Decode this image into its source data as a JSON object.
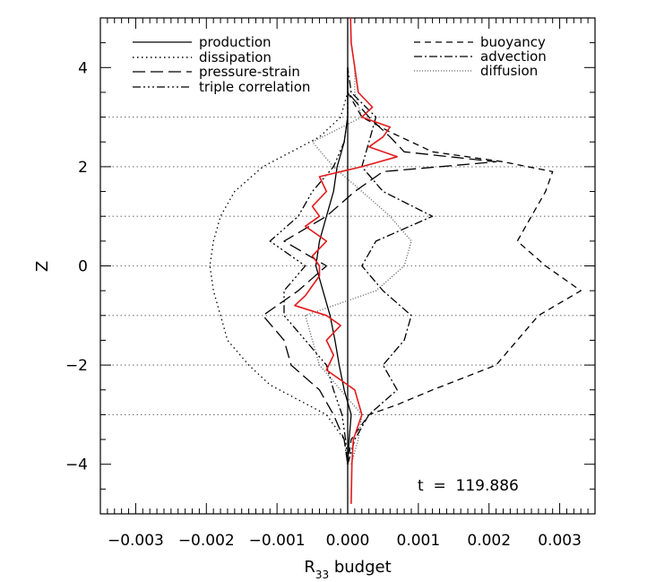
{
  "chart_data": {
    "type": "line",
    "xlabel_main": "R",
    "xlabel_sub": "33",
    "xlabel_rest": " budget",
    "ylabel": "Z",
    "xlim": [
      -0.0035,
      0.0035
    ],
    "ylim": [
      -5,
      5
    ],
    "x_ticks": [
      -0.003,
      -0.002,
      -0.001,
      0.0,
      0.001,
      0.002,
      0.003
    ],
    "x_tick_labels": [
      "−0.003",
      "−0.002",
      "−0.001",
      "0.000",
      "0.001",
      "0.002",
      "0.003"
    ],
    "y_ticks": [
      -4,
      -2,
      0,
      2,
      4
    ],
    "y_tick_labels": [
      "−4",
      "−2",
      "0",
      "2",
      "4"
    ],
    "reference_lines_z": [
      -3,
      -2,
      -1,
      0,
      1,
      2,
      3
    ],
    "annotation": "t  =  119.886",
    "series": [
      {
        "name": "production",
        "style": "solid",
        "color": "#000000",
        "z": [
          -4,
          -3.5,
          -3,
          -2.5,
          -2,
          -1.5,
          -1,
          -0.5,
          0,
          0.5,
          1,
          1.5,
          2,
          2.5,
          3,
          3.5,
          4
        ],
        "x": [
          0,
          2e-05,
          5e-05,
          -5e-05,
          -0.00012,
          -0.00018,
          -0.00025,
          -0.00035,
          -0.00045,
          -0.0004,
          -0.0003,
          -0.0002,
          -0.00015,
          -5e-05,
          0,
          0,
          0
        ]
      },
      {
        "name": "dissipation",
        "style": "dotted",
        "color": "#000000",
        "z": [
          -4,
          -3.5,
          -3,
          -2.7,
          -2.4,
          -2,
          -1.5,
          -1,
          -0.5,
          0,
          0.5,
          1,
          1.5,
          2,
          2.3,
          2.6,
          3,
          3.5,
          4
        ],
        "x": [
          0,
          -5e-05,
          -0.0003,
          -0.0007,
          -0.0011,
          -0.0014,
          -0.0017,
          -0.0018,
          -0.0019,
          -0.00195,
          -0.0019,
          -0.0018,
          -0.0016,
          -0.0012,
          -0.0008,
          -0.0004,
          -0.0001,
          0,
          0
        ]
      },
      {
        "name": "pressure-strain",
        "style": "longdash",
        "color": "#000000",
        "z": [
          -4,
          -3.5,
          -3,
          -2.5,
          -2,
          -1.5,
          -1,
          -0.5,
          0,
          0.5,
          1,
          1.5,
          1.9,
          2.1,
          2.3,
          2.6,
          3,
          3.5,
          4
        ],
        "x": [
          0,
          -5e-05,
          -0.0002,
          -0.0004,
          -0.0008,
          -0.0009,
          -0.0012,
          -0.0007,
          -0.0003,
          -0.0009,
          -0.0003,
          0.0001,
          0.0005,
          0.0021,
          0.0008,
          0.0006,
          0.0003,
          0,
          0
        ]
      },
      {
        "name": "triple correlation",
        "style": "dashdotdot",
        "color": "#000000",
        "z": [
          -4,
          -3.5,
          -3,
          -2.5,
          -2,
          -1.5,
          -1,
          -0.5,
          0,
          0.5,
          1,
          1.5,
          2,
          2.5,
          3,
          3.5,
          4
        ],
        "x": [
          0,
          -3e-05,
          -8e-05,
          -0.0002,
          -0.0003,
          -0.0006,
          -0.0009,
          -0.0009,
          -0.0006,
          -0.0011,
          -0.0007,
          -0.0005,
          -0.0002,
          -5e-05,
          0,
          0,
          0
        ]
      },
      {
        "name": "buoyancy",
        "style": "dashed",
        "color": "#000000",
        "z": [
          -4,
          -3.5,
          -3,
          -2.8,
          -2.5,
          -2,
          -1.5,
          -1,
          -0.5,
          0,
          0.5,
          1,
          1.5,
          1.9,
          2.1,
          2.3,
          2.7,
          3,
          3.5,
          4
        ],
        "x": [
          0,
          5e-05,
          0.0003,
          0.0007,
          0.0012,
          0.0021,
          0.0024,
          0.0027,
          0.0033,
          0.0028,
          0.0024,
          0.0026,
          0.0028,
          0.0029,
          0.0022,
          0.0012,
          0.0006,
          0.0002,
          0,
          0
        ]
      },
      {
        "name": "advection",
        "style": "dashdot",
        "color": "#000000",
        "z": [
          -4,
          -3.5,
          -3,
          -2.5,
          -2,
          -1.5,
          -1,
          -0.5,
          0,
          0.5,
          1,
          1.5,
          2,
          2.5,
          3,
          3.5,
          4
        ],
        "x": [
          0,
          0.0001,
          0.0003,
          0.0007,
          0.0005,
          0.0008,
          0.0009,
          0.0005,
          0.0002,
          0.0004,
          0.0012,
          0.0005,
          0.0002,
          0.0003,
          0.0004,
          5e-05,
          0
        ]
      },
      {
        "name": "diffusion",
        "style": "finedot",
        "color": "#555555",
        "z": [
          -4,
          -3.5,
          -3,
          -2.5,
          -2,
          -1.5,
          -1,
          -0.5,
          0,
          0.5,
          1,
          1.5,
          2,
          2.5,
          3,
          3.5,
          4,
          4.5
        ],
        "x": [
          5e-05,
          0.00015,
          0.0002,
          -0.0001,
          -0.0004,
          -0.0005,
          -0.0006,
          0.0004,
          0.0008,
          0.0009,
          0.0006,
          0.0002,
          -0.0002,
          -0.0005,
          0.0002,
          0.0001,
          0.0001,
          5e-05
        ]
      },
      {
        "name": "",
        "style": "solid",
        "color": "#e31a1c",
        "z": [
          -4.8,
          -4,
          -3.5,
          -3,
          -2.5,
          -2.1,
          -1.8,
          -1.5,
          -1.2,
          -1,
          -0.8,
          -0.6,
          -0.4,
          -0.2,
          0,
          0.2,
          0.5,
          0.8,
          1,
          1.2,
          1.5,
          1.8,
          2.0,
          2.2,
          2.4,
          2.6,
          2.8,
          3.0,
          3.2,
          3.5,
          4,
          4.5,
          5
        ],
        "x": [
          5e-05,
          6e-05,
          8e-05,
          0.0002,
          0.0001,
          -0.0003,
          -0.0002,
          -0.0003,
          -0.0001,
          -0.0003,
          -0.00075,
          -0.0006,
          -0.0005,
          -0.0004,
          -0.0004,
          -0.0005,
          -0.0003,
          -0.0006,
          -0.0004,
          -0.0005,
          -0.0003,
          -0.0004,
          0.0002,
          0.0007,
          0.0003,
          0.0005,
          0.0006,
          0.0002,
          0.00035,
          0.00015,
          0.0001,
          5e-05,
          4e-05
        ]
      }
    ],
    "legend_left": [
      "production",
      "dissipation",
      "pressure-strain",
      "triple correlation"
    ],
    "legend_right": [
      "buoyancy",
      "advection",
      "diffusion"
    ]
  }
}
